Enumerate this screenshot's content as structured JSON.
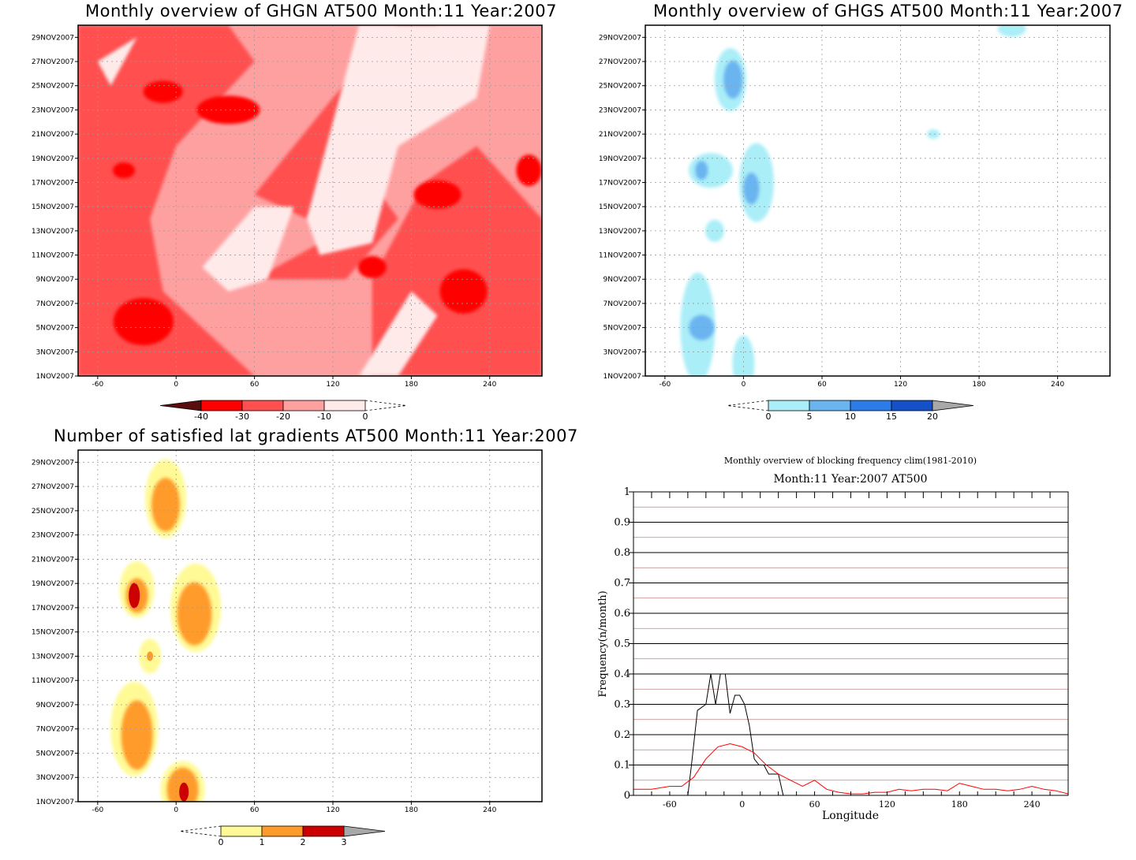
{
  "panels": {
    "ghgn": {
      "title": "Monthly overview of GHGN AT500 Month:11 Year:2007"
    },
    "ghgs": {
      "title": "Monthly overview of GHGS AT500 Month:11 Year:2007"
    },
    "grad": {
      "title": "Number of satisfied lat gradients AT500 Month:11 Year:2007"
    },
    "freq": {
      "title": "Monthly overview of blocking frequency clim(1981-2010)",
      "subtitle": "Month:11 Year:2007  AT500"
    }
  },
  "date_ticks": [
    "1NOV2007",
    "3NOV2007",
    "5NOV2007",
    "7NOV2007",
    "9NOV2007",
    "11NOV2007",
    "13NOV2007",
    "15NOV2007",
    "17NOV2007",
    "19NOV2007",
    "21NOV2007",
    "23NOV2007",
    "25NOV2007",
    "27NOV2007",
    "29NOV2007"
  ],
  "lon_ticks": [
    "-60",
    "0",
    "60",
    "120",
    "180",
    "240"
  ],
  "colorbars": {
    "ghgn": {
      "labels": [
        "-40",
        "-30",
        "-20",
        "-10",
        "0"
      ],
      "colors": [
        "#5a0d0d",
        "#ff0000",
        "#ff5050",
        "#ffa0a0",
        "#ffeaea"
      ]
    },
    "ghgs": {
      "labels": [
        "0",
        "5",
        "10",
        "15",
        "20"
      ],
      "colors": [
        "#aaeef8",
        "#6ab4f0",
        "#2c7ce8",
        "#1450c8",
        "#a8a8a8"
      ]
    },
    "grad": {
      "labels": [
        "0",
        "1",
        "2",
        "3"
      ],
      "colors": [
        "#fffa96",
        "#ff9b2b",
        "#cc0000",
        "#a8a8a8"
      ]
    }
  },
  "chart_data": [
    {
      "type": "heatmap",
      "title": "Monthly overview of GHGN AT500 Month:11 Year:2007",
      "x_range": [
        -75,
        280
      ],
      "y_range": [
        "1NOV2007",
        "30NOV2007"
      ],
      "levels": [
        -40,
        -30,
        -20,
        -10,
        0
      ],
      "blobs": [
        {
          "lon": -25,
          "day": 5.5,
          "value": -40
        },
        {
          "lon": -10,
          "day": 24.5,
          "value": -40
        },
        {
          "lon": 40,
          "day": 22,
          "value": -30
        },
        {
          "lon": 220,
          "day": 8,
          "value": -30
        },
        {
          "lon": 200,
          "day": 15,
          "value": -30
        },
        {
          "lon": 150,
          "day": 10,
          "value": -30
        },
        {
          "lon": 270,
          "day": 18,
          "value": -30
        },
        {
          "lon": 130,
          "day": 25,
          "value": -10
        },
        {
          "lon": 140,
          "day": 20,
          "value": 0
        },
        {
          "lon": 40,
          "day": 14,
          "value": -10
        },
        {
          "lon": 170,
          "day": 4,
          "value": -10
        }
      ]
    },
    {
      "type": "heatmap",
      "title": "Monthly overview of GHGS AT500 Month:11 Year:2007",
      "x_range": [
        -75,
        280
      ],
      "y_range": [
        "1NOV2007",
        "30NOV2007"
      ],
      "levels": [
        0,
        5,
        10,
        15,
        20
      ],
      "blobs": [
        {
          "lon": -35,
          "day": 5,
          "value": 5
        },
        {
          "lon": -30,
          "day": 18,
          "value": 5
        },
        {
          "lon": -10,
          "day": 25,
          "value": 5
        },
        {
          "lon": 5,
          "day": 16,
          "value": 5
        },
        {
          "lon": 5,
          "day": 2,
          "value": 0
        },
        {
          "lon": -25,
          "day": 13,
          "value": 0
        },
        {
          "lon": 145,
          "day": 21,
          "value": 0
        },
        {
          "lon": 200,
          "day": 29.5,
          "value": 5
        }
      ]
    },
    {
      "type": "heatmap",
      "title": "Number of satisfied lat gradients AT500 Month:11 Year:2007",
      "x_range": [
        -75,
        280
      ],
      "y_range": [
        "1NOV2007",
        "30NOV2007"
      ],
      "levels": [
        0,
        1,
        2,
        3
      ],
      "blobs": [
        {
          "lon": -10,
          "day": 26,
          "value": 1
        },
        {
          "lon": -30,
          "day": 18,
          "value": 2
        },
        {
          "lon": 15,
          "day": 17,
          "value": 1
        },
        {
          "lon": -20,
          "day": 13,
          "value": 1
        },
        {
          "lon": -30,
          "day": 7,
          "value": 1
        },
        {
          "lon": 5,
          "day": 2,
          "value": 2
        }
      ]
    },
    {
      "type": "line",
      "title": "Monthly overview of blocking frequency clim(1981-2010)",
      "subtitle": "Month:11 Year:2007  AT500",
      "xlabel": "Longitude",
      "ylabel": "Frequency(n/month)",
      "xlim": [
        -90,
        270
      ],
      "ylim": [
        0,
        1
      ],
      "x_ticks": [
        -60,
        0,
        60,
        120,
        180,
        240
      ],
      "y_ticks": [
        0,
        0.1,
        0.2,
        0.3,
        0.4,
        0.5,
        0.6,
        0.7,
        0.8,
        0.9,
        1
      ],
      "y_tick_labels": [
        "0",
        "0.1",
        "0.2",
        "0.3",
        "0.4",
        "0.5",
        "0.6",
        "0.7",
        "0.8",
        "0.9",
        "1"
      ],
      "series": [
        {
          "color": "#000000",
          "x": [
            -90,
            -45,
            -42,
            -37,
            -30,
            -26,
            -22,
            -18,
            -14,
            -10,
            -6,
            -2,
            2,
            6,
            10,
            14,
            18,
            22,
            26,
            30,
            34,
            270
          ],
          "y": [
            0,
            0,
            0.1,
            0.28,
            0.3,
            0.4,
            0.3,
            0.4,
            0.4,
            0.27,
            0.33,
            0.33,
            0.3,
            0.23,
            0.12,
            0.1,
            0.1,
            0.07,
            0.07,
            0.07,
            0,
            0
          ]
        },
        {
          "color": "#ff0000",
          "x": [
            -90,
            -75,
            -60,
            -50,
            -40,
            -30,
            -20,
            -10,
            0,
            10,
            20,
            30,
            40,
            50,
            60,
            70,
            80,
            90,
            100,
            110,
            120,
            130,
            140,
            150,
            160,
            170,
            180,
            190,
            200,
            210,
            220,
            230,
            240,
            250,
            260,
            270
          ],
          "y": [
            0.02,
            0.02,
            0.03,
            0.03,
            0.06,
            0.12,
            0.16,
            0.17,
            0.16,
            0.14,
            0.1,
            0.07,
            0.05,
            0.03,
            0.05,
            0.02,
            0.01,
            0.005,
            0.005,
            0.01,
            0.01,
            0.02,
            0.015,
            0.02,
            0.02,
            0.015,
            0.04,
            0.03,
            0.02,
            0.02,
            0.015,
            0.02,
            0.03,
            0.02,
            0.015,
            0.005
          ]
        }
      ]
    }
  ]
}
